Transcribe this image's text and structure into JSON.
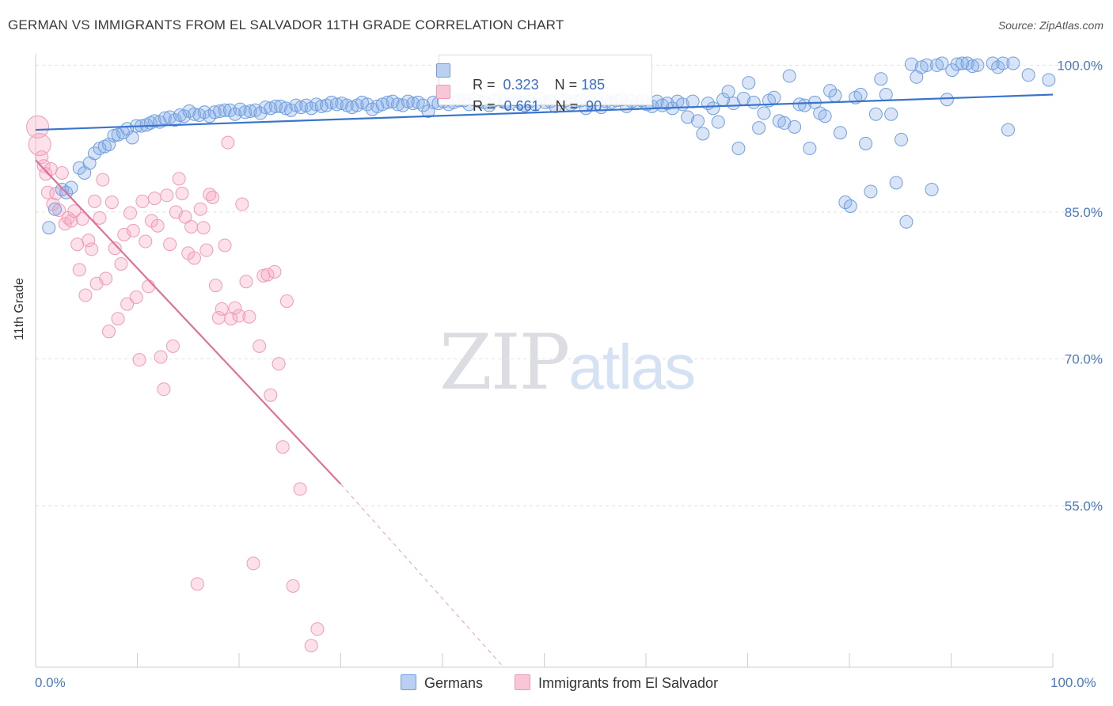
{
  "title": "GERMAN VS IMMIGRANTS FROM EL SALVADOR 11TH GRADE CORRELATION CHART",
  "source": "Source: ZipAtlas.com",
  "watermark": {
    "zip": "ZIP",
    "atlas": "atlas"
  },
  "colors": {
    "blue": "#6f9fe0",
    "blue_line": "#3a74cc",
    "pink": "#f09ab8",
    "pink_line": "#e0709a",
    "axis_text": "#4a78c2"
  },
  "legend": {
    "rows": [
      {
        "r_label": "R = ",
        "r_value": " 0.323",
        "n_label": "N = ",
        "n_value": "185"
      },
      {
        "r_label": "R = ",
        "r_value": "-0.661",
        "n_label": "N = ",
        "n_value": " 90"
      }
    ]
  },
  "bottom_legend": {
    "germans": "Germans",
    "salvador": "Immigrants from El Salvador"
  },
  "chart_data": {
    "type": "scatter",
    "title": "GERMAN VS IMMIGRANTS FROM EL SALVADOR 11TH GRADE CORRELATION CHART",
    "xlabel": "",
    "ylabel": "11th Grade",
    "xlim": [
      0,
      100
    ],
    "ylim": [
      38.5,
      100.6
    ],
    "x_tick_labels": [
      "0.0%",
      "100.0%"
    ],
    "y_ticks": [
      100,
      85,
      70,
      55
    ],
    "y_tick_labels": [
      "100.0%",
      "85.0%",
      "70.0%",
      "55.0%"
    ],
    "grid": true,
    "legend_position": "top-center",
    "series": [
      {
        "name": "Germans",
        "color": "#6f9fe0",
        "R": 0.323,
        "N": 185,
        "trend": {
          "x": [
            0,
            100
          ],
          "y": [
            93.4,
            97.0
          ]
        },
        "points": [
          [
            1.3,
            83.4
          ],
          [
            1.9,
            85.3
          ],
          [
            2.6,
            87.3
          ],
          [
            3.0,
            87.0
          ],
          [
            3.5,
            87.5
          ],
          [
            4.3,
            89.5
          ],
          [
            4.8,
            89.0
          ],
          [
            5.3,
            90.0
          ],
          [
            5.8,
            91.0
          ],
          [
            6.3,
            91.5
          ],
          [
            6.8,
            91.7
          ],
          [
            7.2,
            91.9
          ],
          [
            7.7,
            92.8
          ],
          [
            8.1,
            92.9
          ],
          [
            8.6,
            93.1
          ],
          [
            9.0,
            93.5
          ],
          [
            9.5,
            92.6
          ],
          [
            9.9,
            93.8
          ],
          [
            10.4,
            93.8
          ],
          [
            10.9,
            93.9
          ],
          [
            11.3,
            94.1
          ],
          [
            11.7,
            94.3
          ],
          [
            12.2,
            94.2
          ],
          [
            12.7,
            94.6
          ],
          [
            13.2,
            94.7
          ],
          [
            13.7,
            94.4
          ],
          [
            14.2,
            94.9
          ],
          [
            14.6,
            94.8
          ],
          [
            15.1,
            95.3
          ],
          [
            15.6,
            95.0
          ],
          [
            16.1,
            94.9
          ],
          [
            16.6,
            95.2
          ],
          [
            17.1,
            94.8
          ],
          [
            17.6,
            95.2
          ],
          [
            18.1,
            95.3
          ],
          [
            18.6,
            95.4
          ],
          [
            19.1,
            95.4
          ],
          [
            19.6,
            95.0
          ],
          [
            20.1,
            95.5
          ],
          [
            20.6,
            95.2
          ],
          [
            21.1,
            95.3
          ],
          [
            21.6,
            95.4
          ],
          [
            22.1,
            95.1
          ],
          [
            22.6,
            95.7
          ],
          [
            23.1,
            95.6
          ],
          [
            23.6,
            95.8
          ],
          [
            24.1,
            95.8
          ],
          [
            24.6,
            95.6
          ],
          [
            25.1,
            95.4
          ],
          [
            25.6,
            95.9
          ],
          [
            26.1,
            95.7
          ],
          [
            26.6,
            95.9
          ],
          [
            27.1,
            95.6
          ],
          [
            27.6,
            96.0
          ],
          [
            28.1,
            95.8
          ],
          [
            28.6,
            95.9
          ],
          [
            29.1,
            96.2
          ],
          [
            29.6,
            96.0
          ],
          [
            30.1,
            96.1
          ],
          [
            30.6,
            95.9
          ],
          [
            31.1,
            95.7
          ],
          [
            31.6,
            95.9
          ],
          [
            32.1,
            96.2
          ],
          [
            32.6,
            96.0
          ],
          [
            33.1,
            95.5
          ],
          [
            33.6,
            95.8
          ],
          [
            34.1,
            96.0
          ],
          [
            34.6,
            96.2
          ],
          [
            35.1,
            96.3
          ],
          [
            35.6,
            96.0
          ],
          [
            36.1,
            95.9
          ],
          [
            36.6,
            96.3
          ],
          [
            37.1,
            96.1
          ],
          [
            37.6,
            96.2
          ],
          [
            38.1,
            95.9
          ],
          [
            38.6,
            95.3
          ],
          [
            39.1,
            96.2
          ],
          [
            39.6,
            96.1
          ],
          [
            40.1,
            96.3
          ],
          [
            40.6,
            96.0
          ],
          [
            41.1,
            96.2
          ],
          [
            41.6,
            96.4
          ],
          [
            42.1,
            96.4
          ],
          [
            42.6,
            96.0
          ],
          [
            43.1,
            96.5
          ],
          [
            43.6,
            96.3
          ],
          [
            44.1,
            96.2
          ],
          [
            44.6,
            95.9
          ],
          [
            45.1,
            96.4
          ],
          [
            45.6,
            96.5
          ],
          [
            46.1,
            96.2
          ],
          [
            46.6,
            96.1
          ],
          [
            47.1,
            96.5
          ],
          [
            47.6,
            96.2
          ],
          [
            48.1,
            95.9
          ],
          [
            48.6,
            96.3
          ],
          [
            49.1,
            96.0
          ],
          [
            49.6,
            96.6
          ],
          [
            50.1,
            96.2
          ],
          [
            50.6,
            96.3
          ],
          [
            51.1,
            95.8
          ],
          [
            51.6,
            96.5
          ],
          [
            52.1,
            96.4
          ],
          [
            52.6,
            96.0
          ],
          [
            53.1,
            96.3
          ],
          [
            53.6,
            96.4
          ],
          [
            54.1,
            95.6
          ],
          [
            54.6,
            96.2
          ],
          [
            55.1,
            96.5
          ],
          [
            55.6,
            95.7
          ],
          [
            56.1,
            96.3
          ],
          [
            56.6,
            96.2
          ],
          [
            57.1,
            96.4
          ],
          [
            57.6,
            96.5
          ],
          [
            58.1,
            95.8
          ],
          [
            58.6,
            96.3
          ],
          [
            59.1,
            96.1
          ],
          [
            59.6,
            96.4
          ],
          [
            60.1,
            96.0
          ],
          [
            60.6,
            95.8
          ],
          [
            61.1,
            96.3
          ],
          [
            61.6,
            95.9
          ],
          [
            62.1,
            96.1
          ],
          [
            62.6,
            95.6
          ],
          [
            63.1,
            96.3
          ],
          [
            63.6,
            96.0
          ],
          [
            64.1,
            94.7
          ],
          [
            64.6,
            96.3
          ],
          [
            65.1,
            94.3
          ],
          [
            65.6,
            93.0
          ],
          [
            66.1,
            96.1
          ],
          [
            66.6,
            95.6
          ],
          [
            67.1,
            94.2
          ],
          [
            67.6,
            96.5
          ],
          [
            68.1,
            97.3
          ],
          [
            68.6,
            96.1
          ],
          [
            69.1,
            91.5
          ],
          [
            69.6,
            96.6
          ],
          [
            70.1,
            98.2
          ],
          [
            70.6,
            96.2
          ],
          [
            71.1,
            93.6
          ],
          [
            71.6,
            95.1
          ],
          [
            72.1,
            96.4
          ],
          [
            72.6,
            96.7
          ],
          [
            73.1,
            94.3
          ],
          [
            73.6,
            94.1
          ],
          [
            74.1,
            98.9
          ],
          [
            74.6,
            93.7
          ],
          [
            75.1,
            96.0
          ],
          [
            75.6,
            95.9
          ],
          [
            76.1,
            91.5
          ],
          [
            76.6,
            96.2
          ],
          [
            77.1,
            95.1
          ],
          [
            77.6,
            94.8
          ],
          [
            78.1,
            97.4
          ],
          [
            78.6,
            96.9
          ],
          [
            79.1,
            93.1
          ],
          [
            79.6,
            86.0
          ],
          [
            80.1,
            85.6
          ],
          [
            80.6,
            96.7
          ],
          [
            81.1,
            97.0
          ],
          [
            81.6,
            92.0
          ],
          [
            82.1,
            87.1
          ],
          [
            82.6,
            95.0
          ],
          [
            83.1,
            98.6
          ],
          [
            83.6,
            97.0
          ],
          [
            84.1,
            95.0
          ],
          [
            84.6,
            88.0
          ],
          [
            85.1,
            92.4
          ],
          [
            85.6,
            84.0
          ],
          [
            86.1,
            100.1
          ],
          [
            86.6,
            98.8
          ],
          [
            87.1,
            99.8
          ],
          [
            87.6,
            100.0
          ],
          [
            88.1,
            87.3
          ],
          [
            88.6,
            100.0
          ],
          [
            89.1,
            100.2
          ],
          [
            89.6,
            96.5
          ],
          [
            90.1,
            99.5
          ],
          [
            90.6,
            100.1
          ],
          [
            91.1,
            100.2
          ],
          [
            91.6,
            100.2
          ],
          [
            92.1,
            99.9
          ],
          [
            92.6,
            100.0
          ],
          [
            94.1,
            100.2
          ],
          [
            94.6,
            99.8
          ],
          [
            95.1,
            100.2
          ],
          [
            95.6,
            93.4
          ],
          [
            96.1,
            100.2
          ],
          [
            97.6,
            99.0
          ],
          [
            99.6,
            98.5
          ]
        ]
      },
      {
        "name": "Immigrants from El Salvador",
        "color": "#f09ab8",
        "R": -0.661,
        "N": 90,
        "trend": {
          "x": [
            0,
            30
          ],
          "y": [
            90.3,
            57.2
          ]
        },
        "trend_extension": {
          "x": [
            30,
            46
          ],
          "y": [
            57.2,
            38.5
          ]
        },
        "points": [
          [
            0.2,
            93.7
          ],
          [
            0.4,
            91.9
          ],
          [
            0.6,
            90.6
          ],
          [
            0.8,
            89.7
          ],
          [
            1.0,
            88.9
          ],
          [
            1.2,
            87.0
          ],
          [
            1.5,
            89.4
          ],
          [
            1.7,
            85.8
          ],
          [
            2.0,
            86.9
          ],
          [
            2.3,
            85.2
          ],
          [
            2.6,
            89.0
          ],
          [
            2.9,
            83.8
          ],
          [
            3.2,
            84.4
          ],
          [
            3.5,
            84.1
          ],
          [
            3.8,
            85.1
          ],
          [
            4.1,
            81.7
          ],
          [
            4.3,
            79.1
          ],
          [
            4.6,
            84.3
          ],
          [
            4.9,
            76.5
          ],
          [
            5.2,
            82.1
          ],
          [
            5.5,
            81.2
          ],
          [
            5.8,
            86.1
          ],
          [
            6.0,
            77.7
          ],
          [
            6.3,
            84.4
          ],
          [
            6.6,
            88.3
          ],
          [
            6.9,
            78.2
          ],
          [
            7.2,
            72.8
          ],
          [
            7.5,
            86.0
          ],
          [
            7.8,
            81.3
          ],
          [
            8.1,
            74.1
          ],
          [
            8.4,
            79.7
          ],
          [
            8.7,
            82.7
          ],
          [
            9.0,
            75.6
          ],
          [
            9.3,
            84.9
          ],
          [
            9.6,
            83.1
          ],
          [
            9.9,
            76.3
          ],
          [
            10.2,
            69.9
          ],
          [
            10.5,
            86.1
          ],
          [
            10.8,
            82.0
          ],
          [
            11.1,
            77.4
          ],
          [
            11.4,
            84.1
          ],
          [
            11.7,
            86.4
          ],
          [
            12.0,
            83.6
          ],
          [
            12.3,
            70.2
          ],
          [
            12.6,
            66.9
          ],
          [
            12.9,
            86.7
          ],
          [
            13.2,
            81.7
          ],
          [
            13.5,
            71.3
          ],
          [
            13.8,
            85.0
          ],
          [
            14.1,
            88.4
          ],
          [
            14.4,
            86.9
          ],
          [
            14.7,
            84.5
          ],
          [
            15.0,
            80.8
          ],
          [
            15.3,
            83.5
          ],
          [
            15.6,
            80.3
          ],
          [
            15.9,
            47.0
          ],
          [
            16.2,
            85.3
          ],
          [
            16.5,
            83.4
          ],
          [
            16.8,
            81.1
          ],
          [
            17.1,
            86.8
          ],
          [
            17.4,
            86.5
          ],
          [
            17.7,
            77.5
          ],
          [
            18.0,
            74.2
          ],
          [
            18.3,
            75.1
          ],
          [
            18.6,
            81.6
          ],
          [
            18.9,
            92.1
          ],
          [
            19.2,
            74.1
          ],
          [
            19.6,
            75.2
          ],
          [
            20.0,
            74.4
          ],
          [
            20.3,
            85.8
          ],
          [
            20.7,
            77.9
          ],
          [
            21.0,
            74.3
          ],
          [
            21.4,
            49.1
          ],
          [
            22.0,
            71.3
          ],
          [
            22.4,
            78.5
          ],
          [
            22.8,
            78.6
          ],
          [
            23.1,
            66.3
          ],
          [
            23.5,
            78.9
          ],
          [
            23.9,
            69.5
          ],
          [
            24.3,
            61.0
          ],
          [
            24.7,
            75.9
          ],
          [
            25.3,
            46.8
          ],
          [
            26.0,
            56.7
          ],
          [
            27.1,
            40.7
          ],
          [
            27.7,
            42.4
          ]
        ]
      }
    ]
  }
}
